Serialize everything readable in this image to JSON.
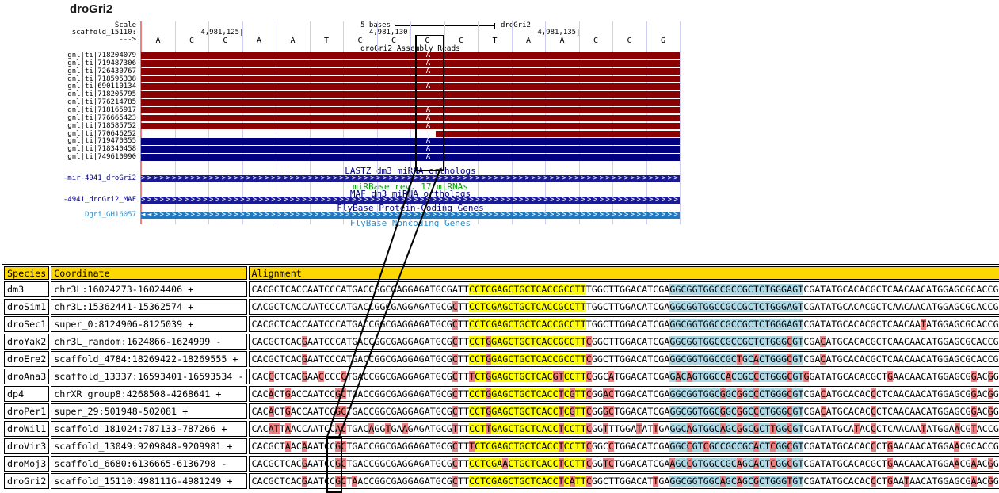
{
  "title": "droGri2",
  "browser": {
    "scale_label": "Scale",
    "scale_value": "5 bases",
    "assembly_label": "droGri2",
    "chrom_label": "scaffold_15110:",
    "strand_arrow": "--->",
    "ruler_marks": [
      {
        "label": "4,981,125|",
        "base": 2
      },
      {
        "label": "4,981,130|",
        "base": 7
      },
      {
        "label": "4,981,135|",
        "base": 12
      }
    ],
    "sequence": "ACGAATCCGCTAACCG",
    "reads_title": "droGri2 Assembly Reads",
    "reads": [
      {
        "name": "gnl|ti|718204079",
        "color": "red",
        "letter": "A",
        "start": 0
      },
      {
        "name": "gnl|ti|719487306",
        "color": "red",
        "letter": "A",
        "start": 0
      },
      {
        "name": "gnl|ti|726430767",
        "color": "red",
        "letter": "A",
        "start": 0
      },
      {
        "name": "gnl|ti|718595338",
        "color": "red",
        "letter": "",
        "start": 0
      },
      {
        "name": "gnl|ti|690110134",
        "color": "red",
        "letter": "A",
        "start": 0
      },
      {
        "name": "gnl|ti|718205795",
        "color": "red",
        "letter": "",
        "start": 0
      },
      {
        "name": "gnl|ti|776214785",
        "color": "red",
        "letter": "",
        "start": 0
      },
      {
        "name": "gnl|ti|718165917",
        "color": "red",
        "letter": "A",
        "start": 0
      },
      {
        "name": "gnl|ti|776665423",
        "color": "red",
        "letter": "A",
        "start": 0
      },
      {
        "name": "gnl|ti|718585752",
        "color": "red",
        "letter": "A",
        "start": 0
      },
      {
        "name": "gnl|ti|770646252",
        "color": "red",
        "letter": "",
        "start": 372
      },
      {
        "name": "gnl|ti|719470355",
        "color": "blue",
        "letter": "A",
        "start": 0
      },
      {
        "name": "gnl|ti|718340458",
        "color": "blue",
        "letter": "A",
        "start": 0
      },
      {
        "name": "gnl|ti|749610990",
        "color": "blue",
        "letter": "A",
        "start": 0
      }
    ],
    "track_labels": {
      "lastz": "LASTZ dm3 miRNA orthologs",
      "mir_left": "-mir-4941_droGri2",
      "mirbase": "miRBase rev. 17 miRNAs",
      "maf": "MAF dm3 miRNA orthologs",
      "maf_left": "-4941_droGri2_MAF",
      "flybase_coding": "FlyBase Protein-Coding Genes",
      "dgri_left": "Dgri_GH16057",
      "flybase_noncoding": "FlyBase Noncoding Genes"
    }
  },
  "table": {
    "headers": [
      "Species",
      "Coordinate",
      "Alignment"
    ],
    "regions": {
      "yellow_start": 39,
      "yellow_end": 60,
      "blue_start": 75,
      "blue_end": 99
    },
    "rows": [
      {
        "species": "dm3",
        "coordinate": "chr3L:16024273-16024406 +",
        "alignment": "CACGCTCACCAATCCCATGACCGGCGAGGAGATGCGATTCCTCGAGCTGCTCACCGCCTTTGGCTTGGACATCGAGGCGGTGGCCGCCGCTCTGGGAGTCGATATGCACACGCTCAACAACATGGAGCGCACCG"
      },
      {
        "species": "droSim1",
        "coordinate": "chr3L:15362441-15362574 +",
        "alignment": "CACGCTCACCAATCCCATGACCGGCGAGGAGATGCGCTTCCTCGAGCTGCTCACCGCCTTTGGCTTGGACATCGAGGCGGTGGCCGCCGCTCTGGGAGTCGATATGCACACGCTCAACAACATGGAGCGCACCG"
      },
      {
        "species": "droSec1",
        "coordinate": "super_0:8124906-8125039 +",
        "alignment": "CACGCTCACCAATCCCATGACCGGCGAGGAGATGCGCTTCCTCGAGCTGCTCACCGCCTTTGGCTTGGACATCGAGGCGGTGGCCGCCGCTCTGGGAGTCGATATGCACACGCTCAACAATATGGAGCGCACCG"
      },
      {
        "species": "droYak2",
        "coordinate": "chr3L_random:1624866-1624999 -",
        "alignment": "CACGCTCACGAATCCCATGACCGGCGAGGAGATGCGCTTCCTGGAGCTGCTCACCGCCTTCGGCTTGGACATCGAGGCGGTGGCCGCCGCTCTGGGCGTCGACATGCACACGCTCAACAACATGGAGCGCACCG"
      },
      {
        "species": "droEre2",
        "coordinate": "scaffold_4784:18269422-18269555 +",
        "alignment": "CACGCTCACGAATCCCATGACCGGCGAGGAGATGCGCTTCCTGGAGCTGCTCACCGCCTTCGGCTTGGACATCGAGGCGGTGGCCGCTGCACTGGGCGTCGACATGCACACGCTCAACAACATGGAGCGCACCG"
      },
      {
        "species": "droAna3",
        "coordinate": "scaffold_13337:16593401-16593534 -",
        "alignment": "CACCCTCACGAACCCCCTGACCGGCGAGGAGATGCGCTTTCTGGAGCTGCTCACGTCCTTCGGCATGGACATCGAGACAGTGGCCACCGCCCTGGGCGTGGATATGCACACGCTGAACAACATGGAGCGGACGG"
      },
      {
        "species": "dp4",
        "coordinate": "chrXR_group8:4268508-4268641 +",
        "alignment": "CACACTGACCAATCCGCTGACCGGCGAGGAGATGCGCTTCCTGGAGCTGCTCACCTCGTTCGGACTGGACATCGAGGCGGTGGCGGCGGCCCTGGGCGTCGACATGCACACCCTCAACAACATGGAGCGGACGG"
      },
      {
        "species": "droPer1",
        "coordinate": "super_29:501948-502081 +",
        "alignment": "CACACTGACCAATCCGCTGACCGGCGAGGAGATGCGCTTCCTGGAGCTGCTCACCTCGTTCGGGCTGGACATCGAGGCGGTGGCGGCGGCCCTGGGCGTCGACATGCACACCCTCAACAACATGGAGCGGACGG"
      },
      {
        "species": "droWil1",
        "coordinate": "scaffold_181024:787133-787266 +",
        "alignment": "CACATTAACCAATCCACTGACAGGTGAAGAGATGCGTTTCCTTGAGCTGCTCACCTCCTTCGGTTTGGATATTGAGGCAGTGGCAGCGGCGCTTGGCGTCGATATGCATACCCTCAACAATATGGAACGTACCG"
      },
      {
        "species": "droVir3",
        "coordinate": "scaffold_13049:9209848-9209981 +",
        "alignment": "CACGCTAACAAATCCGCTGACCGGCGAGGAGATGCGCTTTCTCGAGCTGCTCACCTCCTTCGGCCTGGACATCGAGGCCGTCGCCGCCGCACTCGGCGTCGATATGCACACCCTGAACAACATGGAACGCACCG"
      },
      {
        "species": "droMoj3",
        "coordinate": "scaffold_6680:6136665-6136798 -",
        "alignment": "CACGCTCACGAATCCGCTGACCGGCGAGGAGATGCGCTTCCTCGAACTGCTCACCTCCTTCGGTCTGGACATCGAAGCCGTGGCCGCAGCACTCGGCGTCGATATGCACACGCTGAACAACATGGAACGAACGG"
      },
      {
        "species": "droGri2",
        "coordinate": "scaffold_15110:4981116-4981249 +",
        "alignment": "CACGCTCACGAATCCGCTAACCGGCGAGGAGATGCGCTTCCTCGAGCTGCTCACCTCATTCGGCTTGGACATTGAGGCGGTGGCAGCAGCGCTGGGTGTCGATATGCACACCCTGAATAACATGGAGCGAACGG"
      }
    ]
  },
  "colors": {
    "read_red": "#8B0000",
    "read_blue": "#000080",
    "bar_navy": "#1A1A93",
    "bar_lightblue": "#2079C0",
    "navy_text": "#000080",
    "green_text": "#00A000",
    "lightblue_text": "#2E8FCC",
    "grid": "#CECEF3",
    "guide_pink": "#F08080",
    "yellow_highlight": "#FFFF00",
    "blue_highlight": "#ADD8E6",
    "mismatch_pink": "#F08080",
    "header_gold": "#FFD700"
  }
}
